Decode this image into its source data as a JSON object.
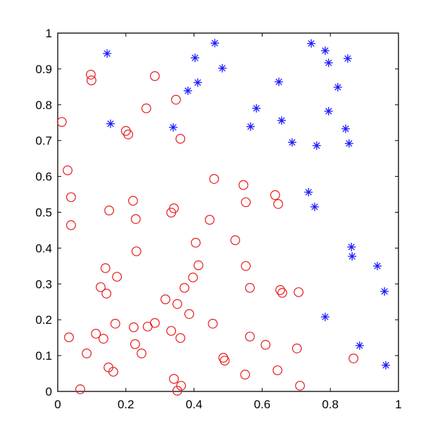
{
  "chart_data": {
    "type": "scatter",
    "title": "",
    "xlabel": "",
    "ylabel": "",
    "xlim": [
      0,
      1
    ],
    "ylim": [
      0,
      1
    ],
    "grid": false,
    "xticks": [
      "0",
      "0.2",
      "0.4",
      "0.6",
      "0.8",
      "1"
    ],
    "yticks": [
      "0",
      "0.1",
      "0.2",
      "0.3",
      "0.4",
      "0.5",
      "0.6",
      "0.7",
      "0.8",
      "0.9",
      "1"
    ],
    "series": [
      {
        "marker": "circle",
        "color": "#e8191c",
        "points": [
          [
            0.012,
            0.752
          ],
          [
            0.029,
            0.617
          ],
          [
            0.039,
            0.542
          ],
          [
            0.039,
            0.464
          ],
          [
            0.097,
            0.884
          ],
          [
            0.099,
            0.868
          ],
          [
            0.285,
            0.88
          ],
          [
            0.26,
            0.79
          ],
          [
            0.2,
            0.727
          ],
          [
            0.207,
            0.717
          ],
          [
            0.347,
            0.814
          ],
          [
            0.36,
            0.705
          ],
          [
            0.459,
            0.593
          ],
          [
            0.545,
            0.576
          ],
          [
            0.552,
            0.528
          ],
          [
            0.638,
            0.548
          ],
          [
            0.647,
            0.523
          ],
          [
            0.151,
            0.505
          ],
          [
            0.221,
            0.532
          ],
          [
            0.229,
            0.481
          ],
          [
            0.333,
            0.499
          ],
          [
            0.341,
            0.511
          ],
          [
            0.446,
            0.479
          ],
          [
            0.521,
            0.422
          ],
          [
            0.405,
            0.415
          ],
          [
            0.413,
            0.352
          ],
          [
            0.231,
            0.391
          ],
          [
            0.14,
            0.344
          ],
          [
            0.174,
            0.32
          ],
          [
            0.126,
            0.291
          ],
          [
            0.143,
            0.273
          ],
          [
            0.372,
            0.289
          ],
          [
            0.397,
            0.318
          ],
          [
            0.316,
            0.257
          ],
          [
            0.351,
            0.244
          ],
          [
            0.386,
            0.216
          ],
          [
            0.552,
            0.35
          ],
          [
            0.564,
            0.289
          ],
          [
            0.653,
            0.283
          ],
          [
            0.659,
            0.275
          ],
          [
            0.707,
            0.277
          ],
          [
            0.033,
            0.151
          ],
          [
            0.112,
            0.161
          ],
          [
            0.134,
            0.147
          ],
          [
            0.169,
            0.189
          ],
          [
            0.223,
            0.179
          ],
          [
            0.285,
            0.191
          ],
          [
            0.264,
            0.181
          ],
          [
            0.227,
            0.132
          ],
          [
            0.246,
            0.106
          ],
          [
            0.333,
            0.169
          ],
          [
            0.36,
            0.149
          ],
          [
            0.455,
            0.189
          ],
          [
            0.085,
            0.106
          ],
          [
            0.149,
            0.067
          ],
          [
            0.163,
            0.055
          ],
          [
            0.066,
            0.006
          ],
          [
            0.341,
            0.035
          ],
          [
            0.362,
            0.016
          ],
          [
            0.351,
            0.002
          ],
          [
            0.486,
            0.094
          ],
          [
            0.49,
            0.086
          ],
          [
            0.564,
            0.153
          ],
          [
            0.61,
            0.13
          ],
          [
            0.702,
            0.12
          ],
          [
            0.55,
            0.047
          ],
          [
            0.645,
            0.059
          ],
          [
            0.711,
            0.016
          ],
          [
            0.868,
            0.092
          ]
        ]
      },
      {
        "marker": "asterisk",
        "color": "#1a1aff",
        "points": [
          [
            0.145,
            0.943
          ],
          [
            0.155,
            0.747
          ],
          [
            0.403,
            0.931
          ],
          [
            0.411,
            0.862
          ],
          [
            0.382,
            0.839
          ],
          [
            0.339,
            0.737
          ],
          [
            0.461,
            0.972
          ],
          [
            0.483,
            0.902
          ],
          [
            0.744,
            0.971
          ],
          [
            0.785,
            0.951
          ],
          [
            0.795,
            0.917
          ],
          [
            0.851,
            0.929
          ],
          [
            0.649,
            0.864
          ],
          [
            0.822,
            0.849
          ],
          [
            0.583,
            0.79
          ],
          [
            0.795,
            0.782
          ],
          [
            0.566,
            0.739
          ],
          [
            0.657,
            0.756
          ],
          [
            0.688,
            0.695
          ],
          [
            0.76,
            0.686
          ],
          [
            0.845,
            0.733
          ],
          [
            0.855,
            0.692
          ],
          [
            0.736,
            0.556
          ],
          [
            0.754,
            0.515
          ],
          [
            0.862,
            0.403
          ],
          [
            0.864,
            0.377
          ],
          [
            0.938,
            0.35
          ],
          [
            0.959,
            0.279
          ],
          [
            0.785,
            0.208
          ],
          [
            0.886,
            0.128
          ],
          [
            0.963,
            0.073
          ]
        ]
      }
    ]
  }
}
